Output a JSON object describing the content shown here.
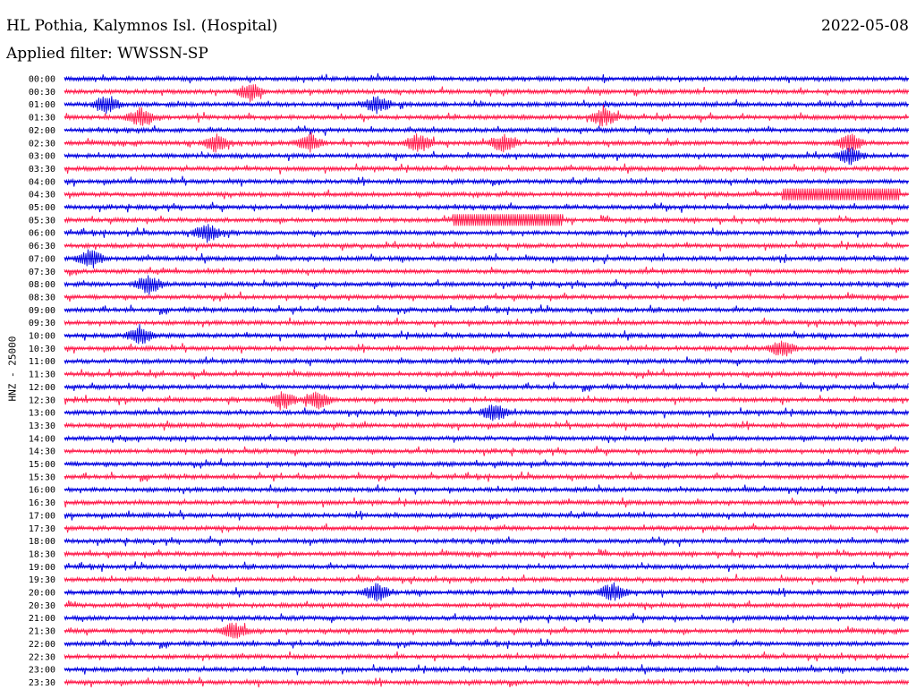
{
  "header": {
    "station": "HL Pothia, Kalymnos Isl. (Hospital)",
    "date": "2022-05-08",
    "filter_label": "Applied filter: WWSSN-SP"
  },
  "colors": {
    "blue": "#0000e0",
    "red": "#ff1c4c"
  },
  "chart_data": {
    "type": "line",
    "title": "HL Pothia, Kalymnos Isl. (Hospital)",
    "ylabel": "HNZ - 25000",
    "row_labels": [
      "00:00",
      "00:30",
      "01:00",
      "01:30",
      "02:00",
      "02:30",
      "03:00",
      "03:30",
      "04:00",
      "04:30",
      "05:00",
      "05:30",
      "06:00",
      "06:30",
      "07:00",
      "07:30",
      "08:00",
      "08:30",
      "09:00",
      "09:30",
      "10:00",
      "10:30",
      "11:00",
      "11:30",
      "12:00",
      "12:30",
      "13:00",
      "13:30",
      "14:00",
      "14:30",
      "15:00",
      "15:30",
      "16:00",
      "16:30",
      "17:00",
      "17:30",
      "18:00",
      "18:30",
      "19:00",
      "19:30",
      "20:00",
      "20:30",
      "21:00",
      "21:30",
      "22:00",
      "22:30",
      "23:00",
      "23:30"
    ],
    "row_colors": "alternating blue/red starting with blue",
    "events": [
      {
        "row": "00:30",
        "t": 0.22
      },
      {
        "row": "01:00",
        "t": 0.05
      },
      {
        "row": "01:00",
        "t": 0.37
      },
      {
        "row": "01:30",
        "t": 0.09
      },
      {
        "row": "01:30",
        "t": 0.64
      },
      {
        "row": "02:30",
        "t": 0.18
      },
      {
        "row": "02:30",
        "t": 0.29
      },
      {
        "row": "02:30",
        "t": 0.42
      },
      {
        "row": "02:30",
        "t": 0.52
      },
      {
        "row": "02:30",
        "t": 0.93
      },
      {
        "row": "03:00",
        "t": 0.93
      },
      {
        "row": "06:00",
        "t": 0.17
      },
      {
        "row": "07:00",
        "t": 0.03
      },
      {
        "row": "08:00",
        "t": 0.1
      },
      {
        "row": "10:00",
        "t": 0.09
      },
      {
        "row": "10:30",
        "t": 0.85
      },
      {
        "row": "12:30",
        "t": 0.26
      },
      {
        "row": "12:30",
        "t": 0.3
      },
      {
        "row": "13:00",
        "t": 0.51
      },
      {
        "row": "20:00",
        "t": 0.37
      },
      {
        "row": "20:00",
        "t": 0.65
      },
      {
        "row": "21:30",
        "t": 0.2
      }
    ],
    "saturated_segments": [
      {
        "row": "04:30",
        "t_start": 0.85,
        "t_end": 0.99
      },
      {
        "row": "05:30",
        "t_start": 0.46,
        "t_end": 0.59
      }
    ]
  }
}
